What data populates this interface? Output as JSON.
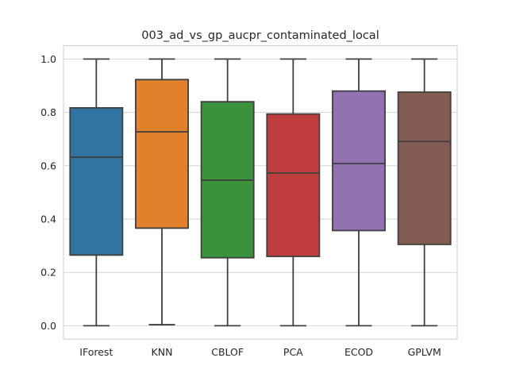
{
  "chart_data": {
    "type": "box",
    "title": "003_ad_vs_gp_aucpr_contaminated_local",
    "xlabel": "",
    "ylabel": "",
    "ylim": [
      -0.05,
      1.05
    ],
    "yticks": [
      0.0,
      0.2,
      0.4,
      0.6,
      0.8,
      1.0
    ],
    "ytick_labels": [
      "0.0",
      "0.2",
      "0.4",
      "0.6",
      "0.8",
      "1.0"
    ],
    "grid": true,
    "categories": [
      "IForest",
      "KNN",
      "CBLOF",
      "PCA",
      "ECOD",
      "GPLVM"
    ],
    "colors": [
      "#3274a1",
      "#e1812c",
      "#3a923a",
      "#c03d3e",
      "#9372b2",
      "#845b53"
    ],
    "boxes": [
      {
        "name": "IForest",
        "min": 0.0,
        "q1": 0.265,
        "median": 0.632,
        "q3": 0.817,
        "max": 1.0
      },
      {
        "name": "KNN",
        "min": 0.004,
        "q1": 0.366,
        "median": 0.727,
        "q3": 0.923,
        "max": 1.0
      },
      {
        "name": "CBLOF",
        "min": 0.0,
        "q1": 0.255,
        "median": 0.546,
        "q3": 0.84,
        "max": 1.0
      },
      {
        "name": "PCA",
        "min": 0.0,
        "q1": 0.26,
        "median": 0.573,
        "q3": 0.794,
        "max": 1.0
      },
      {
        "name": "ECOD",
        "min": 0.0,
        "q1": 0.357,
        "median": 0.608,
        "q3": 0.88,
        "max": 1.0
      },
      {
        "name": "GPLVM",
        "min": 0.0,
        "q1": 0.305,
        "median": 0.691,
        "q3": 0.876,
        "max": 1.0
      }
    ]
  }
}
